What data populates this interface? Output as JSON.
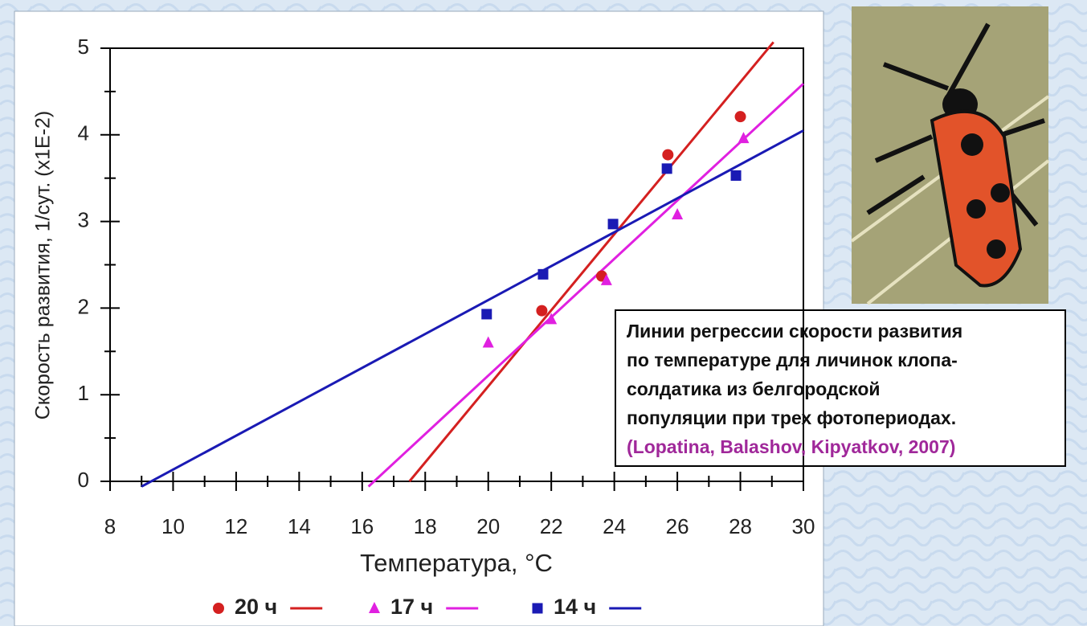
{
  "chart_data": {
    "type": "scatter",
    "x_label": "Температура, °С",
    "y_label": "Скорость развития, 1/сут. (x1E-2)",
    "xlim": [
      8,
      30
    ],
    "ylim": [
      0,
      5
    ],
    "xticks": [
      8,
      10,
      12,
      14,
      16,
      18,
      20,
      22,
      24,
      26,
      28,
      30
    ],
    "yticks": [
      0,
      1,
      2,
      3,
      4,
      5
    ],
    "xminorticks": [
      9,
      11,
      13,
      15,
      17,
      19,
      21,
      23,
      25,
      27,
      29
    ],
    "yminorticks": [
      0.5,
      1.5,
      2.5,
      3.5,
      4.5
    ],
    "series": [
      {
        "name": "20 ч",
        "color": "#d42020",
        "marker": "circle",
        "x": [
          21.7,
          23.6,
          25.7,
          28.0
        ],
        "values": [
          1.97,
          2.37,
          3.77,
          4.21
        ],
        "fit": {
          "x": [
            17.5,
            29.05
          ],
          "y": [
            0,
            5.07
          ]
        }
      },
      {
        "name": "17 ч",
        "color": "#e020e0",
        "marker": "triangle",
        "x": [
          20.0,
          22.0,
          23.75,
          26.0,
          28.1
        ],
        "values": [
          1.6,
          1.87,
          2.32,
          3.08,
          3.96
        ],
        "fit": {
          "x": [
            16.2,
            30
          ],
          "y": [
            -0.06,
            4.59
          ]
        }
      },
      {
        "name": "14 ч",
        "color": "#1a1ab4",
        "marker": "square",
        "x": [
          19.95,
          21.74,
          23.96,
          25.67,
          27.86
        ],
        "values": [
          1.93,
          2.39,
          2.97,
          3.61,
          3.53
        ],
        "fit": {
          "x": [
            9.0,
            30
          ],
          "y": [
            -0.06,
            4.05
          ]
        }
      }
    ],
    "annotation": {
      "lines": [
        "Линии регрессии скорости развития",
        "по температуре для личинок клопа-",
        "солдатика из белгородской",
        "популяции при трех фотопериодах."
      ],
      "citation": "(Lopatina, Balashov, Kipyatkov, 2007)"
    }
  }
}
